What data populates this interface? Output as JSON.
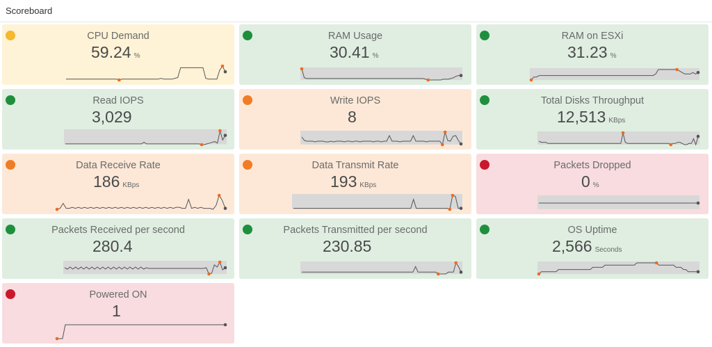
{
  "header": {
    "title": "Scoreboard"
  },
  "colors": {
    "green": "#1f8f3e",
    "orange": "#f07d25",
    "yellow": "#f5b82e",
    "red": "#c9182c",
    "bg_green": "#dfeee1",
    "bg_orange": "#fde8d7",
    "bg_yellow": "#fef3d6",
    "bg_red": "#f8dcdf",
    "sparkline": "#555555",
    "band": "#d8d8d8",
    "min_marker": "#f06a1c",
    "last_marker": "#555555"
  },
  "tiles": [
    {
      "label": "CPU Demand",
      "value": "59.24",
      "unit": "%",
      "status": "yellow",
      "spark": [
        3,
        3,
        3,
        3,
        3,
        3,
        3,
        3,
        3,
        3,
        3,
        3,
        3,
        3,
        3,
        3,
        3,
        3,
        3,
        2,
        3,
        3,
        3,
        3,
        3,
        3,
        3,
        3,
        3,
        3,
        3,
        3,
        3,
        3,
        4,
        3,
        3,
        3,
        3,
        4,
        5,
        17,
        17,
        17,
        17,
        17,
        17,
        17,
        17,
        17,
        4,
        3,
        3,
        3,
        3,
        14,
        19,
        12
      ]
    },
    {
      "label": "RAM Usage",
      "value": "30.41",
      "unit": "%",
      "status": "green",
      "spark": [
        15,
        3,
        2,
        2,
        2,
        2,
        2,
        2,
        2,
        2,
        2,
        2,
        2,
        2,
        2,
        2,
        2,
        2,
        2,
        2,
        2,
        2,
        2,
        2,
        2,
        2,
        2,
        2,
        2,
        2,
        2,
        2,
        2,
        2,
        2,
        2,
        2,
        2,
        2,
        2,
        2,
        2,
        2,
        2,
        2,
        2,
        2,
        2,
        2,
        1,
        0,
        0,
        0,
        0,
        0,
        0,
        1,
        1,
        1,
        2,
        3,
        5,
        6,
        6
      ]
    },
    {
      "label": "RAM on ESXi",
      "value": "31.23",
      "unit": "%",
      "status": "green",
      "spark": [
        0,
        2,
        2,
        3,
        3,
        3,
        3,
        3,
        3,
        3,
        3,
        3,
        3,
        3,
        3,
        3,
        3,
        3,
        3,
        3,
        3,
        3,
        3,
        3,
        3,
        3,
        3,
        3,
        3,
        3,
        3,
        3,
        3,
        3,
        3,
        3,
        3,
        3,
        3,
        3,
        3,
        3,
        3,
        3,
        3,
        3,
        3,
        4,
        7,
        7,
        7,
        7,
        7,
        7,
        7,
        7,
        6,
        5,
        4,
        4,
        4,
        5,
        4,
        5
      ]
    },
    {
      "label": "Read IOPS",
      "value": "3,029",
      "unit": "",
      "status": "green",
      "spark": [
        4,
        4,
        4,
        4,
        4,
        4,
        4,
        4,
        4,
        4,
        4,
        4,
        4,
        4,
        4,
        4,
        4,
        4,
        4,
        4,
        4,
        4,
        4,
        4,
        4,
        4,
        4,
        4,
        4,
        4,
        6,
        4,
        4,
        4,
        4,
        4,
        4,
        4,
        4,
        4,
        4,
        4,
        4,
        4,
        4,
        4,
        4,
        4,
        4,
        4,
        4,
        4,
        3,
        3,
        4,
        5,
        6,
        7,
        5,
        21,
        9,
        15
      ]
    },
    {
      "label": "Write IOPS",
      "value": "8",
      "unit": "",
      "status": "orange",
      "spark": [
        14,
        9,
        8,
        8,
        8,
        7,
        8,
        8,
        8,
        7,
        7,
        8,
        7,
        8,
        8,
        8,
        7,
        8,
        8,
        7,
        8,
        8,
        7,
        8,
        8,
        8,
        8,
        7,
        8,
        8,
        7,
        8,
        8,
        16,
        8,
        8,
        8,
        7,
        8,
        8,
        8,
        8,
        16,
        8,
        8,
        8,
        8,
        7,
        8,
        8,
        8,
        8,
        8,
        3,
        21,
        9,
        8,
        15,
        16,
        9,
        4
      ]
    },
    {
      "label": "Total Disks Throughput",
      "value": "12,513",
      "unit": "KBps",
      "status": "green",
      "spark": [
        7,
        6,
        6,
        6,
        5,
        5,
        5,
        5,
        5,
        5,
        5,
        5,
        5,
        5,
        5,
        5,
        5,
        5,
        5,
        5,
        5,
        5,
        5,
        5,
        5,
        5,
        5,
        5,
        5,
        5,
        5,
        5,
        5,
        5,
        5,
        5,
        5,
        14,
        6,
        5,
        5,
        5,
        5,
        5,
        5,
        5,
        5,
        5,
        5,
        5,
        5,
        5,
        5,
        5,
        5,
        5,
        5,
        5,
        4,
        5,
        5,
        6,
        6,
        5,
        4,
        4,
        5,
        5,
        9,
        4,
        11
      ]
    },
    {
      "label": "Data Receive Rate",
      "value": "186",
      "unit": "KBps",
      "status": "orange",
      "spark": [
        4,
        5,
        10,
        5,
        5,
        6,
        5,
        6,
        5,
        6,
        5,
        6,
        5,
        6,
        5,
        6,
        5,
        6,
        5,
        6,
        5,
        6,
        5,
        6,
        5,
        6,
        5,
        6,
        5,
        6,
        5,
        6,
        5,
        6,
        5,
        6,
        5,
        6,
        5,
        6,
        6,
        5,
        5,
        14,
        5,
        6,
        5,
        6,
        5,
        5,
        5,
        4,
        8,
        18,
        13,
        5
      ]
    },
    {
      "label": "Data Transmit Rate",
      "value": "193",
      "unit": "KBps",
      "status": "orange",
      "spark": [
        5,
        5,
        5,
        5,
        5,
        5,
        5,
        5,
        5,
        5,
        5,
        5,
        5,
        5,
        5,
        5,
        5,
        5,
        5,
        5,
        5,
        5,
        5,
        5,
        5,
        5,
        5,
        5,
        5,
        5,
        5,
        5,
        5,
        5,
        5,
        5,
        5,
        5,
        5,
        5,
        5,
        5,
        5,
        14,
        5,
        5,
        5,
        5,
        5,
        5,
        5,
        5,
        5,
        5,
        5,
        5,
        4,
        18,
        17,
        5,
        5
      ]
    },
    {
      "label": "Packets Dropped",
      "value": "0",
      "unit": "%",
      "status": "red",
      "spark": [
        0,
        0,
        0,
        0,
        0,
        0,
        0,
        0,
        0,
        0,
        0,
        0,
        0,
        0,
        0,
        0,
        0,
        0,
        0,
        0,
        0,
        0,
        0,
        0,
        0,
        0,
        0,
        0,
        0,
        0,
        0,
        0,
        0,
        0
      ]
    },
    {
      "label": "Packets Received per second",
      "value": "280.4",
      "unit": "",
      "status": "green",
      "spark": [
        10,
        8,
        11,
        8,
        11,
        8,
        11,
        8,
        11,
        8,
        11,
        8,
        11,
        8,
        11,
        8,
        11,
        8,
        11,
        8,
        11,
        8,
        11,
        8,
        11,
        8,
        11,
        8,
        11,
        8,
        10,
        9,
        9,
        9,
        9,
        9,
        9,
        9,
        9,
        9,
        9,
        9,
        9,
        9,
        9,
        9,
        9,
        9,
        9,
        9,
        9,
        9,
        10,
        1,
        2,
        14,
        11,
        18,
        7,
        10
      ]
    },
    {
      "label": "Packets Transmitted per second",
      "value": "230.85",
      "unit": "",
      "status": "green",
      "spark": [
        2,
        2,
        2,
        2,
        2,
        2,
        2,
        2,
        2,
        2,
        2,
        2,
        2,
        2,
        2,
        2,
        2,
        2,
        2,
        2,
        2,
        2,
        2,
        2,
        2,
        2,
        2,
        2,
        2,
        2,
        2,
        2,
        2,
        2,
        2,
        2,
        2,
        2,
        2,
        2,
        2,
        2,
        2,
        2,
        2,
        5,
        2,
        2,
        2,
        2,
        2,
        2,
        2,
        2,
        1,
        1,
        1,
        1,
        2,
        2,
        2,
        7,
        5,
        2
      ]
    },
    {
      "label": "OS Uptime",
      "value": "2,566",
      "unit": "Seconds",
      "status": "green",
      "spark": [
        1,
        2,
        2,
        2,
        2,
        2,
        2,
        2,
        3,
        3,
        3,
        3,
        3,
        3,
        3,
        3,
        3,
        3,
        3,
        3,
        3,
        3,
        4,
        4,
        4,
        4,
        4,
        5,
        5,
        5,
        5,
        5,
        5,
        5,
        5,
        5,
        5,
        5,
        5,
        5,
        6,
        6,
        6,
        6,
        6,
        6,
        6,
        6,
        6,
        5,
        5,
        5,
        5,
        5,
        5,
        5,
        4,
        4,
        4,
        3,
        3,
        2,
        2,
        2,
        2,
        2
      ]
    },
    {
      "label": "Powered ON",
      "value": "1",
      "unit": "",
      "status": "red",
      "spark": [
        0,
        0,
        0,
        1,
        1,
        1,
        1,
        1,
        1,
        1,
        1,
        1,
        1,
        1,
        1,
        1,
        1,
        1,
        1,
        1,
        1,
        1,
        1,
        1,
        1,
        1,
        1,
        1,
        1,
        1,
        1,
        1,
        1,
        1,
        1,
        1,
        1,
        1,
        1,
        1,
        1,
        1,
        1,
        1,
        1,
        1,
        1,
        1,
        1,
        1,
        1,
        1,
        1,
        1,
        1,
        1,
        1,
        1,
        1,
        1,
        1,
        1
      ]
    }
  ]
}
